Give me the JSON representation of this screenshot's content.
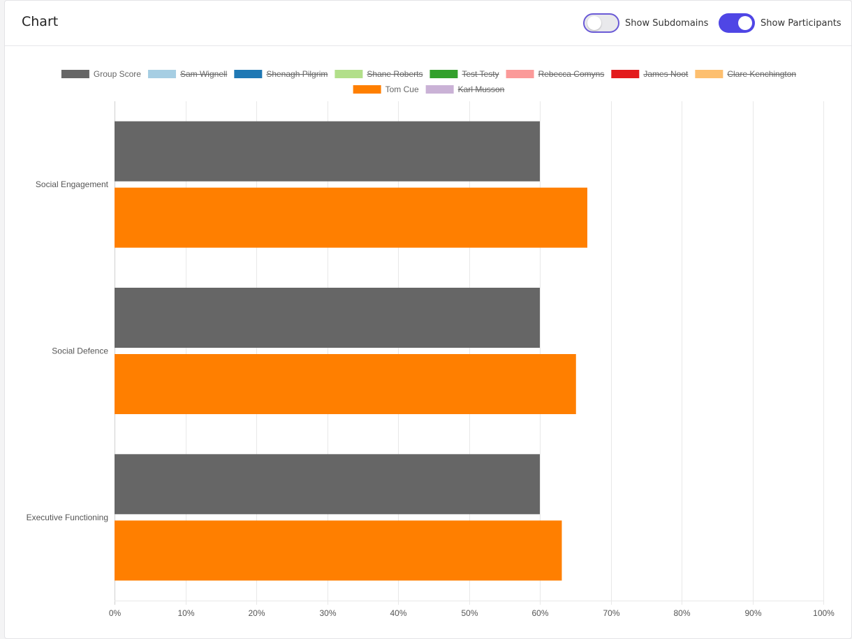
{
  "header": {
    "title": "Chart",
    "toggles": [
      {
        "label": "Show Subdomains",
        "on": false
      },
      {
        "label": "Show Participants",
        "on": true
      }
    ]
  },
  "chart_data": {
    "type": "bar",
    "orientation": "horizontal",
    "categories": [
      "Social Engagement",
      "Social Defence",
      "Executive Functioning"
    ],
    "series": [
      {
        "name": "Group Score",
        "color": "#666666",
        "hidden": false,
        "values": [
          60,
          60,
          60
        ]
      },
      {
        "name": "Sam Wignell",
        "color": "#a6cee3",
        "hidden": true
      },
      {
        "name": "Shenagh Pilgrim",
        "color": "#1f78b4",
        "hidden": true
      },
      {
        "name": "Shane Roberts",
        "color": "#b2df8a",
        "hidden": true
      },
      {
        "name": "Test Testy",
        "color": "#33a02c",
        "hidden": true
      },
      {
        "name": "Rebecca Comyns",
        "color": "#fb9a99",
        "hidden": true
      },
      {
        "name": "James Noot",
        "color": "#e31a1c",
        "hidden": true
      },
      {
        "name": "Clare Kenchington",
        "color": "#fdbf6f",
        "hidden": true
      },
      {
        "name": "Tom Cue",
        "color": "#ff7f00",
        "hidden": false,
        "values": [
          66.7,
          65.1,
          63.1
        ]
      },
      {
        "name": "Karl Musson",
        "color": "#cab2d6",
        "hidden": true
      }
    ],
    "x_ticks": [
      "0%",
      "10%",
      "20%",
      "30%",
      "40%",
      "50%",
      "60%",
      "70%",
      "80%",
      "90%",
      "100%"
    ],
    "xlim": [
      0,
      100
    ],
    "grid": true,
    "legend_position": "top"
  }
}
